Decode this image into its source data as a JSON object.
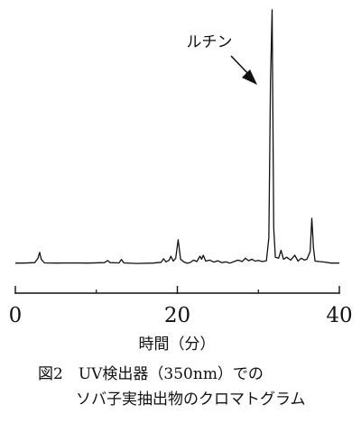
{
  "chart_data": {
    "type": "line",
    "xlabel": "時間（分）",
    "ylabel": "",
    "xlim": [
      0,
      40
    ],
    "xticks": [
      0,
      20,
      40
    ],
    "grid": false,
    "annotation": {
      "text": "ルチン",
      "peak_x": 31.6
    },
    "series": [
      {
        "color": "#111111",
        "points": [
          [
            0.0,
            2.0
          ],
          [
            1.0,
            2.0
          ],
          [
            2.4,
            2.2
          ],
          [
            2.8,
            4.5
          ],
          [
            3.0,
            7.5
          ],
          [
            3.2,
            4.0
          ],
          [
            3.6,
            2.1
          ],
          [
            5.0,
            2.0
          ],
          [
            7.0,
            2.1
          ],
          [
            9.0,
            2.0
          ],
          [
            11.0,
            2.2
          ],
          [
            11.4,
            3.3
          ],
          [
            11.7,
            2.2
          ],
          [
            12.8,
            2.1
          ],
          [
            13.1,
            3.8
          ],
          [
            13.4,
            2.1
          ],
          [
            15.0,
            1.8
          ],
          [
            17.0,
            2.0
          ],
          [
            18.0,
            2.4
          ],
          [
            18.3,
            4.2
          ],
          [
            18.6,
            2.6
          ],
          [
            19.0,
            3.5
          ],
          [
            19.2,
            5.5
          ],
          [
            19.5,
            3.0
          ],
          [
            19.8,
            4.5
          ],
          [
            20.1,
            14.0
          ],
          [
            20.4,
            4.0
          ],
          [
            20.8,
            2.6
          ],
          [
            21.2,
            1.9
          ],
          [
            21.6,
            2.3
          ],
          [
            22.0,
            3.5
          ],
          [
            22.4,
            2.8
          ],
          [
            22.8,
            5.5
          ],
          [
            23.0,
            4.0
          ],
          [
            23.2,
            6.0
          ],
          [
            23.5,
            3.0
          ],
          [
            24.0,
            3.5
          ],
          [
            24.5,
            2.5
          ],
          [
            25.0,
            3.2
          ],
          [
            25.5,
            2.2
          ],
          [
            26.0,
            2.6
          ],
          [
            26.5,
            2.0
          ],
          [
            27.0,
            2.8
          ],
          [
            27.5,
            3.5
          ],
          [
            28.0,
            2.8
          ],
          [
            28.4,
            4.5
          ],
          [
            28.8,
            3.2
          ],
          [
            29.2,
            4.0
          ],
          [
            29.6,
            3.0
          ],
          [
            30.0,
            3.4
          ],
          [
            30.5,
            2.8
          ],
          [
            31.0,
            3.2
          ],
          [
            31.3,
            15.0
          ],
          [
            31.5,
            95.0
          ],
          [
            31.7,
            132.0
          ],
          [
            31.9,
            20.0
          ],
          [
            32.1,
            5.0
          ],
          [
            32.5,
            4.5
          ],
          [
            32.8,
            8.5
          ],
          [
            33.1,
            4.0
          ],
          [
            33.5,
            5.0
          ],
          [
            34.0,
            3.5
          ],
          [
            34.5,
            6.0
          ],
          [
            34.9,
            3.0
          ],
          [
            35.3,
            4.5
          ],
          [
            35.7,
            3.5
          ],
          [
            36.0,
            4.0
          ],
          [
            36.4,
            8.0
          ],
          [
            36.6,
            25.0
          ],
          [
            36.8,
            10.0
          ],
          [
            37.0,
            3.0
          ],
          [
            37.5,
            2.8
          ],
          [
            38.0,
            2.6
          ],
          [
            39.0,
            2.0
          ],
          [
            40.0,
            2.0
          ]
        ]
      }
    ]
  },
  "caption": {
    "line1": "図2　UV検出器（350nm）での",
    "line2": "ソバ子実抽出物のクロマトグラム"
  }
}
